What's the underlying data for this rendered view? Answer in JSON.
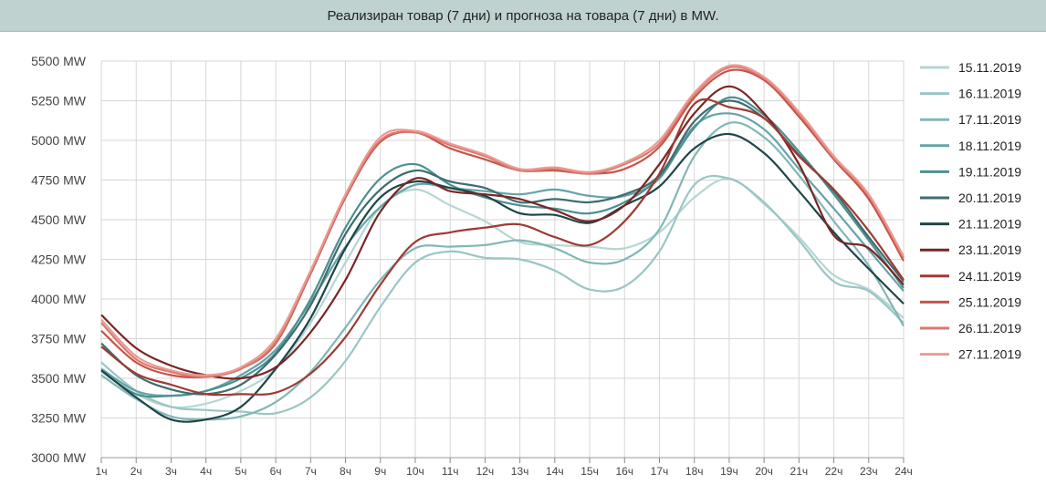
{
  "chart_data": {
    "type": "line",
    "title": "Реализиран товар (7 дни) и прогноза на товара (7 дни) в MW.",
    "x": [
      "1ч",
      "2ч",
      "3ч",
      "4ч",
      "5ч",
      "6ч",
      "7ч",
      "8ч",
      "9ч",
      "10ч",
      "11ч",
      "12ч",
      "13ч",
      "14ч",
      "15ч",
      "16ч",
      "17ч",
      "18ч",
      "19ч",
      "20ч",
      "21ч",
      "22ч",
      "23ч",
      "24ч"
    ],
    "ylim": [
      3000,
      5500
    ],
    "yticks": [
      3000,
      3250,
      3500,
      3750,
      4000,
      4250,
      4500,
      4750,
      5000,
      5250,
      5500
    ],
    "ytick_labels": [
      "3000 MW",
      "3250 MW",
      "3500 MW",
      "3750 MW",
      "4000 MW",
      "4250 MW",
      "4500 MW",
      "4750 MW",
      "5000 MW",
      "5250 MW",
      "5500 MW"
    ],
    "grid": true,
    "legend_position": "right",
    "series": [
      {
        "name": "15.11.2019",
        "color": "#b5d6d3",
        "values": [
          3540,
          3400,
          3320,
          3340,
          3420,
          3560,
          3850,
          4230,
          4580,
          4690,
          4590,
          4490,
          4360,
          4340,
          4330,
          4320,
          4420,
          4640,
          4760,
          4600,
          4390,
          4150,
          4060,
          3880
        ]
      },
      {
        "name": "16.11.2019",
        "color": "#99c6c4",
        "values": [
          3600,
          3420,
          3320,
          3300,
          3290,
          3280,
          3380,
          3610,
          3950,
          4230,
          4300,
          4260,
          4250,
          4180,
          4060,
          4080,
          4300,
          4720,
          4760,
          4610,
          4370,
          4110,
          4050,
          3850
        ]
      },
      {
        "name": "17.11.2019",
        "color": "#80b7b6",
        "values": [
          3520,
          3370,
          3260,
          3240,
          3260,
          3350,
          3540,
          3820,
          4120,
          4320,
          4330,
          4340,
          4370,
          4320,
          4230,
          4250,
          4440,
          4900,
          5110,
          5020,
          4780,
          4490,
          4210,
          3830
        ]
      },
      {
        "name": "18.11.2019",
        "color": "#65a3a7",
        "values": [
          3560,
          3420,
          3390,
          3420,
          3520,
          3680,
          3980,
          4330,
          4580,
          4720,
          4700,
          4680,
          4660,
          4690,
          4650,
          4650,
          4760,
          5090,
          5170,
          5070,
          4820,
          4570,
          4310,
          4050
        ]
      },
      {
        "name": "19.11.2019",
        "color": "#4e8f8f",
        "values": [
          3550,
          3400,
          3390,
          3420,
          3500,
          3660,
          4000,
          4450,
          4760,
          4850,
          4720,
          4640,
          4590,
          4570,
          4540,
          4610,
          4770,
          5080,
          5270,
          5160,
          4930,
          4660,
          4370,
          4070
        ]
      },
      {
        "name": "20.11.2019",
        "color": "#3e6d70",
        "values": [
          3720,
          3520,
          3430,
          3400,
          3460,
          3650,
          3960,
          4410,
          4690,
          4810,
          4740,
          4700,
          4610,
          4630,
          4610,
          4660,
          4780,
          5120,
          5250,
          5140,
          4910,
          4680,
          4390,
          4110
        ]
      },
      {
        "name": "21.11.2019",
        "color": "#1f4548",
        "values": [
          3550,
          3380,
          3240,
          3240,
          3320,
          3560,
          3880,
          4320,
          4640,
          4740,
          4700,
          4650,
          4540,
          4530,
          4480,
          4590,
          4710,
          4950,
          5040,
          4920,
          4680,
          4420,
          4190,
          3970
        ]
      },
      {
        "name": "23.11.2019",
        "color": "#7a2525",
        "values": [
          3900,
          3690,
          3580,
          3520,
          3500,
          3570,
          3790,
          4120,
          4550,
          4760,
          4680,
          4660,
          4630,
          4560,
          4490,
          4590,
          4850,
          5170,
          5340,
          5170,
          4850,
          4400,
          4320,
          4090
        ]
      },
      {
        "name": "24.11.2019",
        "color": "#9e3a33",
        "values": [
          3700,
          3530,
          3460,
          3400,
          3400,
          3410,
          3530,
          3760,
          4090,
          4360,
          4420,
          4450,
          4470,
          4390,
          4340,
          4490,
          4790,
          5230,
          5210,
          5140,
          4900,
          4690,
          4430,
          4120
        ]
      },
      {
        "name": "25.11.2019",
        "color": "#c6544a",
        "values": [
          3800,
          3600,
          3520,
          3510,
          3560,
          3720,
          4160,
          4640,
          4990,
          5050,
          4950,
          4880,
          4810,
          4810,
          4790,
          4820,
          4960,
          5270,
          5440,
          5380,
          5150,
          4880,
          4630,
          4240
        ]
      },
      {
        "name": "26.11.2019",
        "color": "#dd776d",
        "values": [
          3850,
          3620,
          3540,
          3510,
          3560,
          3730,
          4170,
          4650,
          5000,
          5050,
          4970,
          4900,
          4810,
          4820,
          4790,
          4850,
          4980,
          5290,
          5460,
          5390,
          5170,
          4890,
          4650,
          4260
        ]
      },
      {
        "name": "27.11.2019",
        "color": "#e99b94",
        "values": [
          3870,
          3640,
          3550,
          3520,
          3570,
          3750,
          4180,
          4660,
          5020,
          5060,
          4980,
          4910,
          4820,
          4830,
          4800,
          4860,
          5000,
          5300,
          5470,
          5400,
          5180,
          4900,
          4660,
          4270
        ]
      }
    ]
  }
}
